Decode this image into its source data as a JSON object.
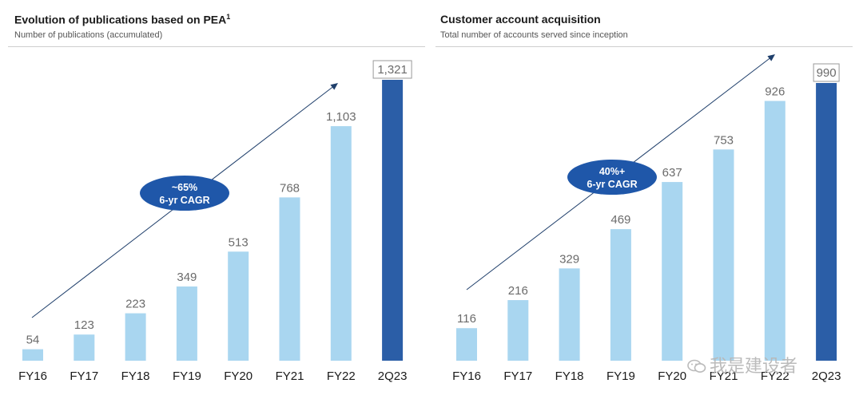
{
  "chart_data": [
    {
      "type": "bar",
      "title": "Evolution of publications based on PEA",
      "title_superscript": "1",
      "subtitle": "Number of publications (accumulated)",
      "categories": [
        "FY16",
        "FY17",
        "FY18",
        "FY19",
        "FY20",
        "FY21",
        "FY22",
        "2Q23"
      ],
      "values": [
        54,
        123,
        223,
        349,
        513,
        768,
        1103,
        1321
      ],
      "value_labels": [
        "54",
        "123",
        "223",
        "349",
        "513",
        "768",
        "1,103",
        "1,321"
      ],
      "highlighted_category": "2Q23",
      "annotation": {
        "line1": "~65%",
        "line2": "6-yr CAGR"
      },
      "colors": {
        "bar": "#a9d6f0",
        "highlight": "#2b5ea7",
        "annotation": "#1f57a9"
      },
      "ylim": [
        0,
        1321
      ]
    },
    {
      "type": "bar",
      "title": "Customer account acquisition",
      "subtitle": "Total number of accounts served since inception",
      "categories": [
        "FY16",
        "FY17",
        "FY18",
        "FY19",
        "FY20",
        "FY21",
        "FY22",
        "2Q23"
      ],
      "values": [
        116,
        216,
        329,
        469,
        637,
        753,
        926,
        990
      ],
      "value_labels": [
        "116",
        "216",
        "329",
        "469",
        "637",
        "753",
        "926",
        "990"
      ],
      "highlighted_category": "2Q23",
      "annotation": {
        "line1": "40%+",
        "line2": "6-yr CAGR"
      },
      "colors": {
        "bar": "#a9d6f0",
        "highlight": "#2b5ea7",
        "annotation": "#1f57a9"
      },
      "ylim": [
        0,
        990
      ]
    }
  ],
  "watermark": {
    "text": "我是建设者",
    "icon": "wechat-icon"
  }
}
